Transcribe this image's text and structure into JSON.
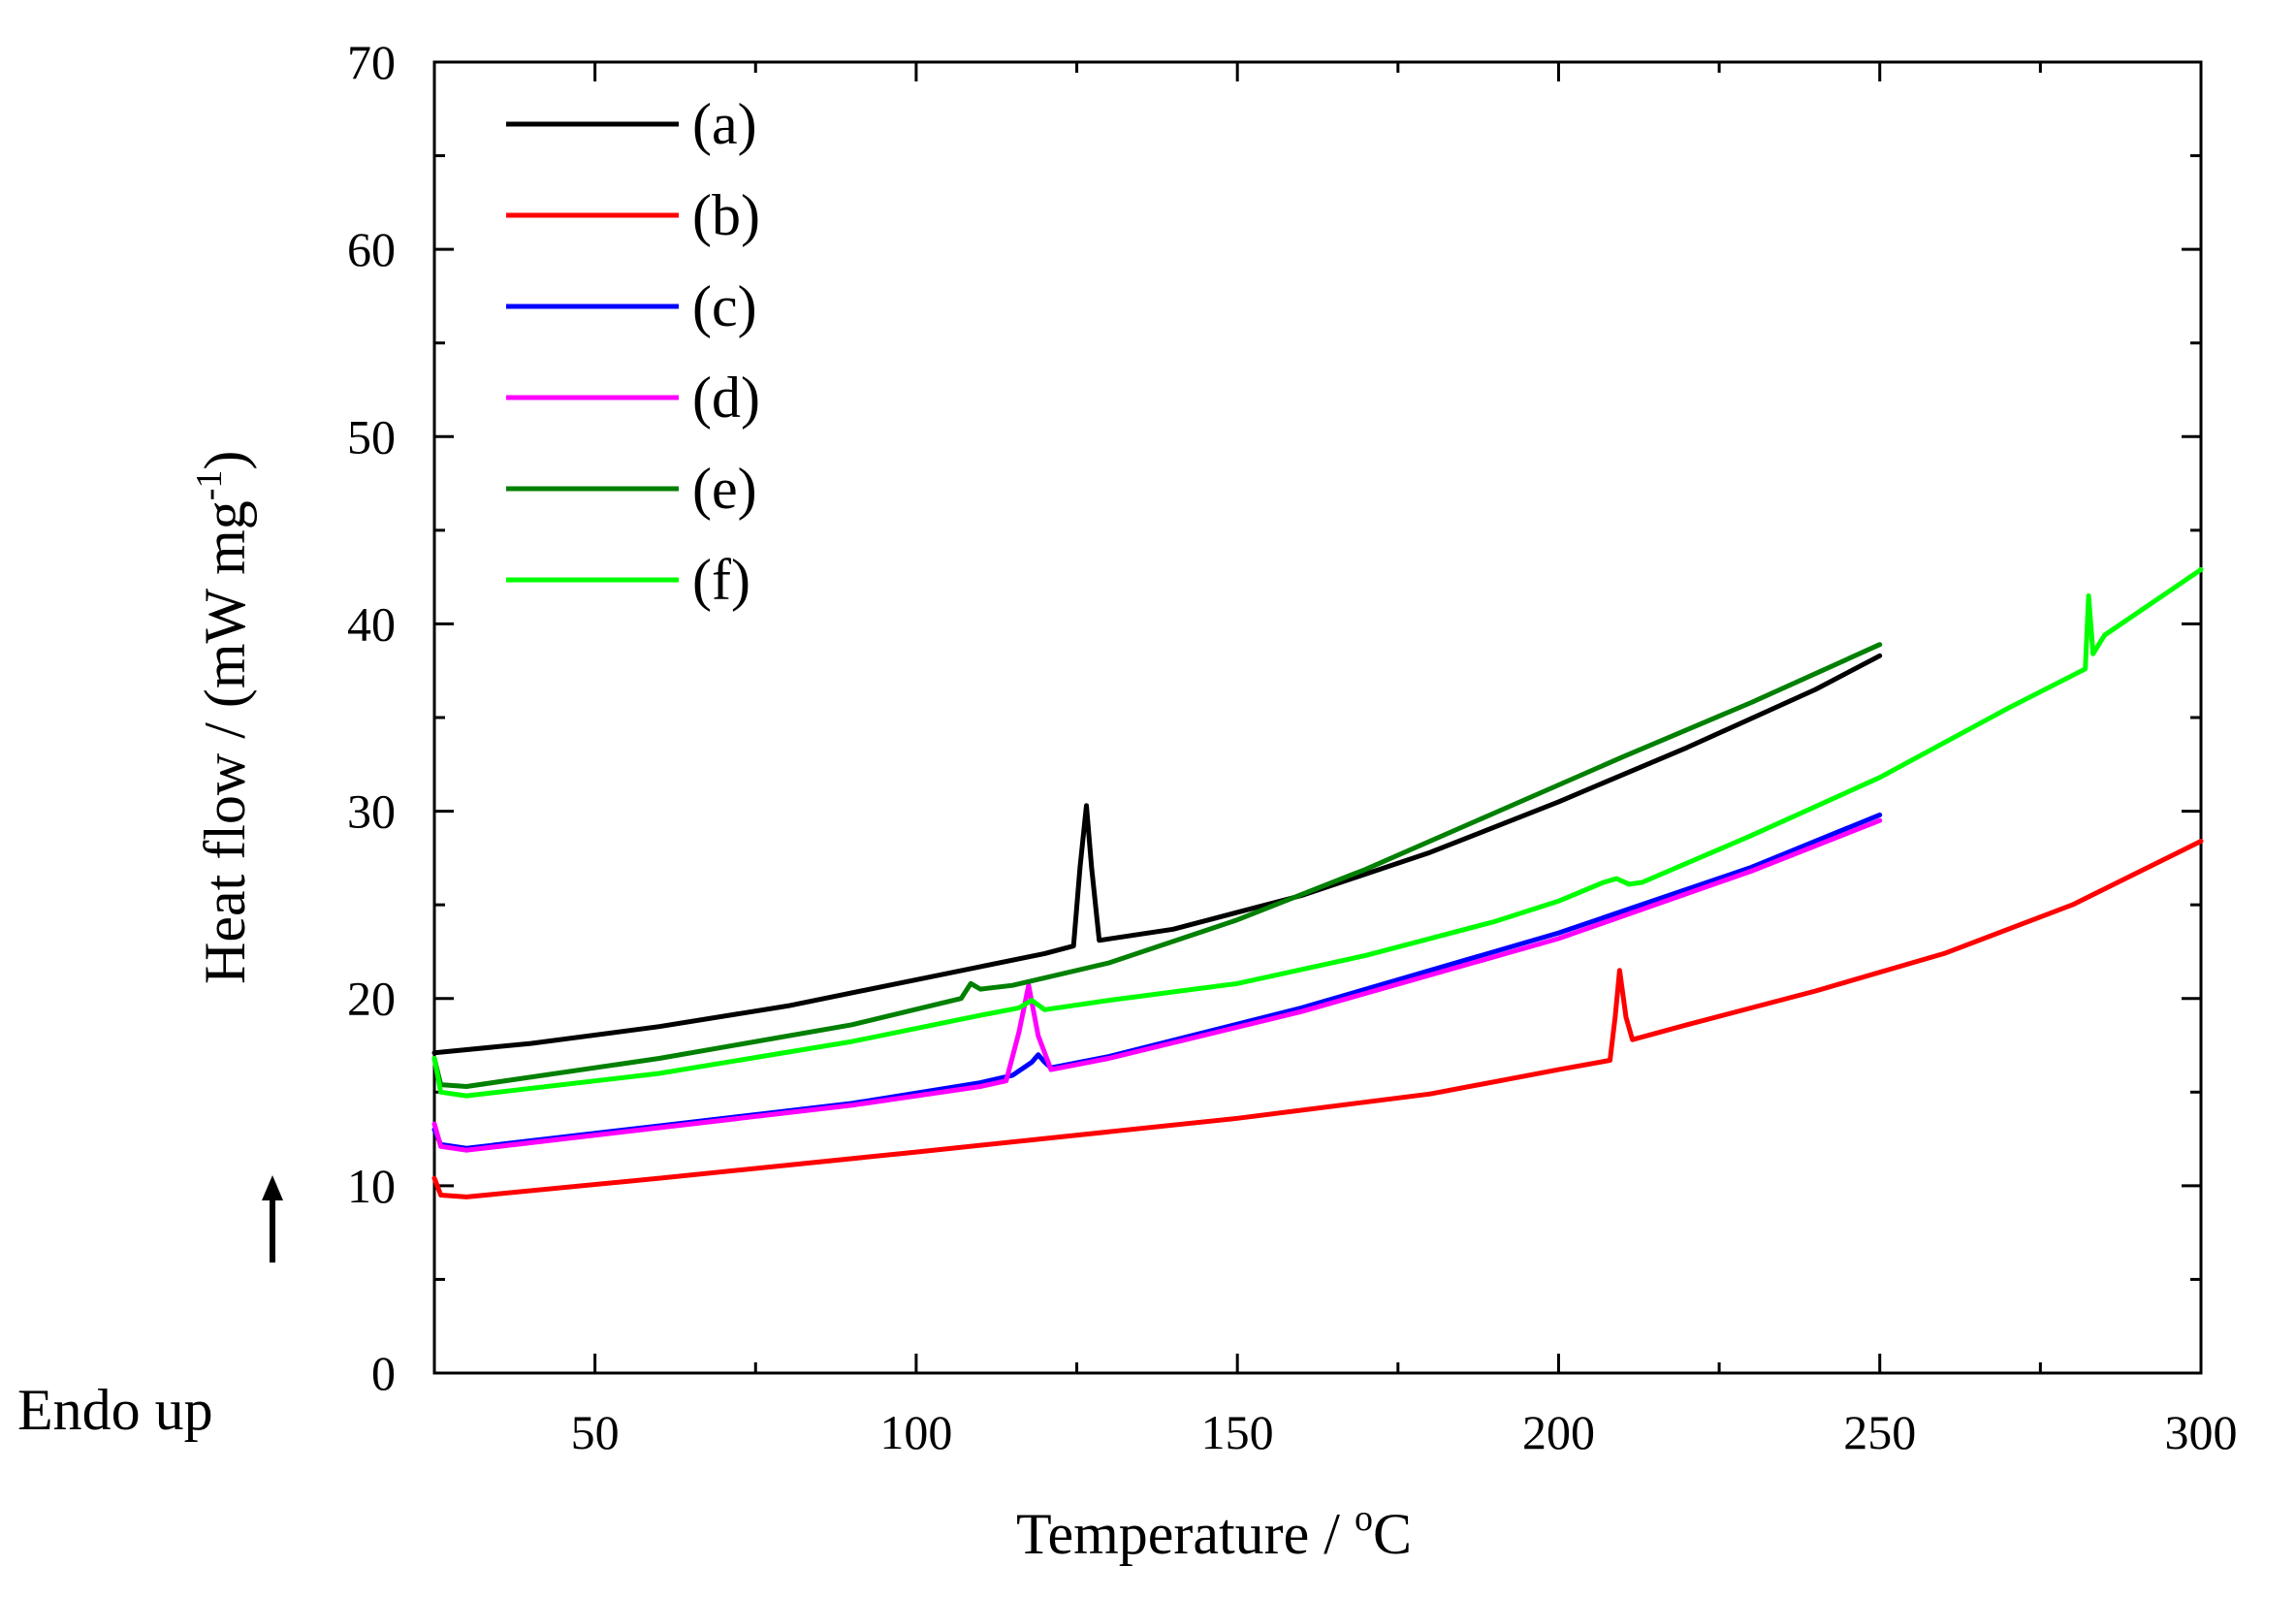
{
  "chart_data": {
    "type": "line",
    "title": "",
    "xlabel": "Temperature / ",
    "xlabel_unit": "C",
    "xlabel_sup": "o",
    "ylabel": "Heat flow / (mW mg",
    "ylabel_sup": "-1",
    "ylabel_end": ")",
    "xlim": [
      25,
      300
    ],
    "ylim": [
      0,
      70
    ],
    "xticks": [
      50,
      100,
      150,
      200,
      250,
      300
    ],
    "yticks": [
      0,
      10,
      20,
      30,
      40,
      50,
      60,
      70
    ],
    "grid": false,
    "legend_position": "top-left",
    "annotation": "Endo up",
    "series": [
      {
        "name": "(a)",
        "color": "#000000",
        "points": [
          [
            25,
            17.1
          ],
          [
            40,
            17.6
          ],
          [
            60,
            18.5
          ],
          [
            80,
            19.6
          ],
          [
            100,
            21.0
          ],
          [
            110,
            21.7
          ],
          [
            120,
            22.4
          ],
          [
            124.5,
            22.8
          ],
          [
            125.5,
            27
          ],
          [
            126.5,
            30.3
          ],
          [
            127.3,
            27
          ],
          [
            128.5,
            23.1
          ],
          [
            140,
            23.7
          ],
          [
            160,
            25.5
          ],
          [
            180,
            27.8
          ],
          [
            200,
            30.5
          ],
          [
            220,
            33.4
          ],
          [
            240,
            36.5
          ],
          [
            250,
            38.3
          ]
        ]
      },
      {
        "name": "(b)",
        "color": "#ff0000",
        "points": [
          [
            25,
            10.4
          ],
          [
            26,
            9.5
          ],
          [
            30,
            9.4
          ],
          [
            60,
            10.4
          ],
          [
            100,
            11.8
          ],
          [
            150,
            13.6
          ],
          [
            180,
            14.9
          ],
          [
            200,
            16.2
          ],
          [
            208,
            16.7
          ],
          [
            208.8,
            19
          ],
          [
            209.5,
            21.5
          ],
          [
            210.5,
            19
          ],
          [
            211.5,
            17.8
          ],
          [
            220,
            18.6
          ],
          [
            240,
            20.4
          ],
          [
            260,
            22.4
          ],
          [
            280,
            25.0
          ],
          [
            300,
            28.4
          ]
        ]
      },
      {
        "name": "(c)",
        "color": "#0000ff",
        "points": [
          [
            25,
            13.0
          ],
          [
            26,
            12.2
          ],
          [
            30,
            12.0
          ],
          [
            60,
            13.2
          ],
          [
            90,
            14.4
          ],
          [
            110,
            15.5
          ],
          [
            115,
            15.9
          ],
          [
            118,
            16.6
          ],
          [
            119,
            17.0
          ],
          [
            120,
            16.6
          ],
          [
            121,
            16.3
          ],
          [
            130,
            16.9
          ],
          [
            160,
            19.5
          ],
          [
            200,
            23.5
          ],
          [
            230,
            27.0
          ],
          [
            250,
            29.8
          ]
        ]
      },
      {
        "name": "(d)",
        "color": "#ff00ff",
        "points": [
          [
            25,
            13.3
          ],
          [
            26,
            12.1
          ],
          [
            30,
            11.9
          ],
          [
            60,
            13.1
          ],
          [
            90,
            14.3
          ],
          [
            110,
            15.3
          ],
          [
            114,
            15.6
          ],
          [
            116,
            18.2
          ],
          [
            117.5,
            20.7
          ],
          [
            119,
            18
          ],
          [
            121,
            16.2
          ],
          [
            130,
            16.8
          ],
          [
            160,
            19.3
          ],
          [
            200,
            23.2
          ],
          [
            230,
            26.8
          ],
          [
            250,
            29.5
          ]
        ]
      },
      {
        "name": "(e)",
        "color": "#008000",
        "points": [
          [
            25,
            16.8
          ],
          [
            26,
            15.4
          ],
          [
            30,
            15.3
          ],
          [
            60,
            16.8
          ],
          [
            90,
            18.6
          ],
          [
            107,
            20.0
          ],
          [
            108.5,
            20.8
          ],
          [
            110,
            20.5
          ],
          [
            115,
            20.7
          ],
          [
            130,
            21.9
          ],
          [
            150,
            24.2
          ],
          [
            170,
            26.9
          ],
          [
            190,
            29.9
          ],
          [
            210,
            32.9
          ],
          [
            230,
            35.8
          ],
          [
            250,
            38.9
          ]
        ]
      },
      {
        "name": "(f)",
        "color": "#00ff00",
        "points": [
          [
            25,
            16.8
          ],
          [
            26,
            15.0
          ],
          [
            30,
            14.8
          ],
          [
            60,
            16.0
          ],
          [
            90,
            17.7
          ],
          [
            110,
            19.1
          ],
          [
            116,
            19.5
          ],
          [
            118,
            19.9
          ],
          [
            120,
            19.4
          ],
          [
            130,
            19.9
          ],
          [
            150,
            20.8
          ],
          [
            170,
            22.3
          ],
          [
            190,
            24.1
          ],
          [
            200,
            25.2
          ],
          [
            207,
            26.2
          ],
          [
            209,
            26.4
          ],
          [
            211,
            26.1
          ],
          [
            213,
            26.2
          ],
          [
            230,
            28.7
          ],
          [
            250,
            31.8
          ],
          [
            270,
            35.5
          ],
          [
            282,
            37.6
          ],
          [
            282.5,
            41.5
          ],
          [
            283.2,
            38.4
          ],
          [
            285,
            39.4
          ],
          [
            300,
            42.9
          ]
        ]
      }
    ]
  }
}
